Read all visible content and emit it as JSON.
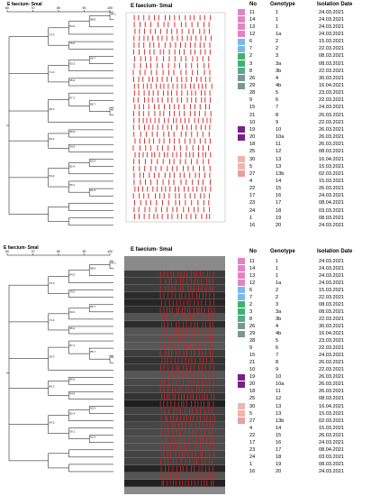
{
  "panels": [
    {
      "dendrogram_title": "E faecium- SmaI",
      "gel_title": "E faecium- SmaI",
      "gel_style": "schematic"
    },
    {
      "dendrogram_title": "E faecium- SmaI",
      "gel_title": "E faecium- SmaI",
      "gel_style": "photo"
    }
  ],
  "columns": {
    "no": "No",
    "genotype": "Genotype",
    "date": "Isolation Date"
  },
  "scale_ticks": [
    "60",
    "70",
    "80",
    "90",
    "100"
  ],
  "node_labels": [
    "94.1",
    "88.9",
    "84.2",
    "75.0",
    "73.3",
    "66.7",
    "63.2",
    "95.2",
    "71.4",
    "60",
    "85.7",
    "87.1",
    "96.3",
    "86.5",
    "54.5",
    "84.2",
    "62.5",
    "82.4",
    "61.5",
    "59.1",
    "54.2"
  ],
  "colors": {
    "pink": "#e483c4",
    "light_blue": "#7cb9e8",
    "green": "#3fb26c",
    "teal_green": "#5aa891",
    "teal_gray": "#79988f",
    "purple": "#7a1f86",
    "salmon": "#f0b3ad",
    "salmon_dark": "#e9a09a",
    "band_red": "#d11f1f"
  },
  "isolates": [
    {
      "no": "11",
      "genotype": "1",
      "date": "24.03.2021",
      "color": "#e483c4"
    },
    {
      "no": "14",
      "genotype": "1",
      "date": "24.03.2021",
      "color": "#e483c4"
    },
    {
      "no": "13",
      "genotype": "1",
      "date": "24.03.2021",
      "color": "#e483c4"
    },
    {
      "no": "12",
      "genotype": "1a",
      "date": "24.03.2021",
      "color": "#e483c4"
    },
    {
      "no": "6",
      "genotype": "2",
      "date": "15.03.2021",
      "color": "#7cb9e8"
    },
    {
      "no": "7",
      "genotype": "2",
      "date": "22.03.2021",
      "color": "#7cb9e8"
    },
    {
      "no": "2",
      "genotype": "3",
      "date": "08.03.2021",
      "color": "#3fb26c"
    },
    {
      "no": "3",
      "genotype": "3a",
      "date": "08.03.2021",
      "color": "#3fb26c"
    },
    {
      "no": "8",
      "genotype": "3b",
      "date": "22.03.2021",
      "color": "#5aa891"
    },
    {
      "no": "26",
      "genotype": "4",
      "date": "30.03.2021",
      "color": "#79988f"
    },
    {
      "no": "29",
      "genotype": "4b",
      "date": "16.04.2021",
      "color": "#79988f"
    },
    {
      "no": "28",
      "genotype": "5",
      "date": "23.03.2021",
      "color": ""
    },
    {
      "no": "9",
      "genotype": "6",
      "date": "22.03.2021",
      "color": ""
    },
    {
      "no": "15",
      "genotype": "7",
      "date": "24.03.2021",
      "color": ""
    },
    {
      "no": "21",
      "genotype": "8",
      "date": "26.03.2021",
      "color": ""
    },
    {
      "no": "10",
      "genotype": "9",
      "date": "22.03.2021",
      "color": ""
    },
    {
      "no": "19",
      "genotype": "10",
      "date": "26.03.2021",
      "color": "#7a1f86"
    },
    {
      "no": "20",
      "genotype": "10a",
      "date": "26.03.2021",
      "color": "#7a1f86"
    },
    {
      "no": "18",
      "genotype": "11",
      "date": "26.03.2021",
      "color": ""
    },
    {
      "no": "25",
      "genotype": "12",
      "date": "08.03.2021",
      "color": ""
    },
    {
      "no": "30",
      "genotype": "13",
      "date": "16.04.2021",
      "color": "#f0b3ad"
    },
    {
      "no": "5",
      "genotype": "13",
      "date": "15.03.2021",
      "color": "#f0b3ad"
    },
    {
      "no": "27",
      "genotype": "13b",
      "date": "02.03.2021",
      "color": "#e9a09a"
    },
    {
      "no": "4",
      "genotype": "14",
      "date": "15.03.2021",
      "color": ""
    },
    {
      "no": "22",
      "genotype": "15",
      "date": "26.03.2021",
      "color": ""
    },
    {
      "no": "17",
      "genotype": "16",
      "date": "24.03.2021",
      "color": ""
    },
    {
      "no": "23",
      "genotype": "17",
      "date": "08.04.2021",
      "color": ""
    },
    {
      "no": "24",
      "genotype": "18",
      "date": "03.03.2021",
      "color": ""
    },
    {
      "no": "1",
      "genotype": "19",
      "date": "08.03.2021",
      "color": ""
    },
    {
      "no": "16",
      "genotype": "20",
      "date": "24.03.2021",
      "color": ""
    }
  ]
}
